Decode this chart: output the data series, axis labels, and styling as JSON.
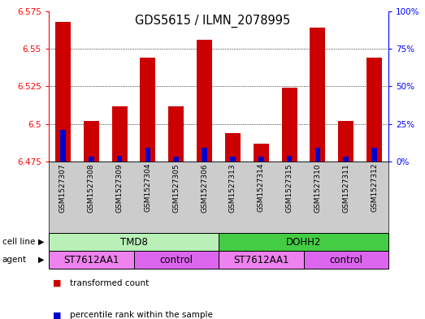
{
  "title": "GDS5615 / ILMN_2078995",
  "samples": [
    "GSM1527307",
    "GSM1527308",
    "GSM1527309",
    "GSM1527304",
    "GSM1527305",
    "GSM1527306",
    "GSM1527313",
    "GSM1527314",
    "GSM1527315",
    "GSM1527310",
    "GSM1527311",
    "GSM1527312"
  ],
  "red_values": [
    6.568,
    6.502,
    6.512,
    6.544,
    6.512,
    6.556,
    6.494,
    6.487,
    6.524,
    6.564,
    6.502,
    6.544
  ],
  "blue_values": [
    6.496,
    6.478,
    6.479,
    6.484,
    6.478,
    6.484,
    6.478,
    6.478,
    6.479,
    6.484,
    6.478,
    6.484
  ],
  "y_min": 6.475,
  "y_max": 6.575,
  "y_ticks_left": [
    6.475,
    6.5,
    6.525,
    6.55,
    6.575
  ],
  "y_ticks_right": [
    0,
    25,
    50,
    75,
    100
  ],
  "cell_line_groups": [
    {
      "label": "TMD8",
      "start": 0,
      "end": 5,
      "color": "#b8f0b8"
    },
    {
      "label": "DOHH2",
      "start": 6,
      "end": 11,
      "color": "#44cc44"
    }
  ],
  "agent_groups": [
    {
      "label": "ST7612AA1",
      "start": 0,
      "end": 2,
      "color": "#ee82ee"
    },
    {
      "label": "control",
      "start": 3,
      "end": 5,
      "color": "#dd66ee"
    },
    {
      "label": "ST7612AA1",
      "start": 6,
      "end": 8,
      "color": "#ee82ee"
    },
    {
      "label": "control",
      "start": 9,
      "end": 11,
      "color": "#dd66ee"
    }
  ],
  "bar_color": "#cc0000",
  "blue_color": "#0000cc",
  "tick_bg_color": "#cccccc",
  "legend_items": [
    {
      "label": "transformed count",
      "color": "#cc0000"
    },
    {
      "label": "percentile rank within the sample",
      "color": "#0000cc"
    }
  ]
}
